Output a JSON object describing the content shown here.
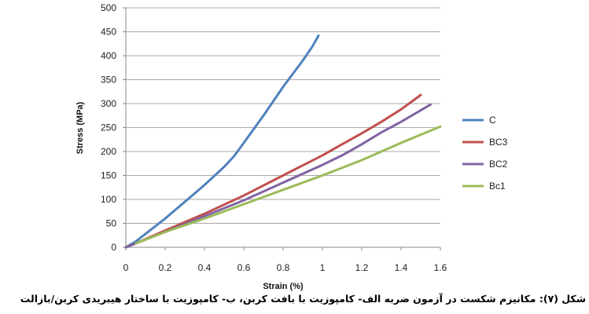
{
  "caption": "شکل (۷): مکانیزم شکست در آزمون ضربه الف- کامپوزیت با بافت کربن، ب- کامپوزیت با ساختار هیبریدی کربن/بازالت",
  "chart_data": {
    "type": "line",
    "xlabel": "Strain (%)",
    "ylabel": "Stress (MPa)",
    "xlim": [
      0,
      1.6
    ],
    "ylim": [
      0,
      500
    ],
    "xticks": [
      "0",
      "0.2",
      "0.4",
      "0.6",
      "0.8",
      "1",
      "1.2",
      "1.4",
      "1.6"
    ],
    "yticks": [
      "0",
      "50",
      "100",
      "150",
      "200",
      "250",
      "300",
      "350",
      "400",
      "450",
      "500"
    ],
    "grid": "horizontal",
    "legend_position": "right",
    "series": [
      {
        "name": "C",
        "color": "#4F81BD",
        "points": [
          [
            0.0,
            0
          ],
          [
            0.05,
            12
          ],
          [
            0.1,
            28
          ],
          [
            0.2,
            60
          ],
          [
            0.3,
            95
          ],
          [
            0.4,
            130
          ],
          [
            0.5,
            168
          ],
          [
            0.55,
            190
          ],
          [
            0.6,
            218
          ],
          [
            0.7,
            275
          ],
          [
            0.8,
            335
          ],
          [
            0.9,
            390
          ],
          [
            0.95,
            420
          ],
          [
            0.98,
            442
          ]
        ]
      },
      {
        "name": "BC3",
        "color": "#C0504D",
        "points": [
          [
            0.0,
            0
          ],
          [
            0.05,
            8
          ],
          [
            0.2,
            35
          ],
          [
            0.4,
            70
          ],
          [
            0.6,
            108
          ],
          [
            0.8,
            150
          ],
          [
            1.0,
            192
          ],
          [
            1.1,
            215
          ],
          [
            1.2,
            238
          ],
          [
            1.3,
            262
          ],
          [
            1.4,
            288
          ],
          [
            1.5,
            318
          ]
        ]
      },
      {
        "name": "BC2",
        "color": "#8064A2",
        "points": [
          [
            0.0,
            0
          ],
          [
            0.05,
            8
          ],
          [
            0.2,
            32
          ],
          [
            0.4,
            65
          ],
          [
            0.6,
            98
          ],
          [
            0.8,
            135
          ],
          [
            1.0,
            172
          ],
          [
            1.1,
            192
          ],
          [
            1.2,
            215
          ],
          [
            1.3,
            240
          ],
          [
            1.4,
            262
          ],
          [
            1.55,
            298
          ]
        ]
      },
      {
        "name": "Bc1",
        "color": "#9BBB59",
        "points": [
          [
            0.05,
            8
          ],
          [
            0.2,
            32
          ],
          [
            0.4,
            60
          ],
          [
            0.6,
            90
          ],
          [
            0.8,
            120
          ],
          [
            1.0,
            150
          ],
          [
            1.2,
            182
          ],
          [
            1.4,
            218
          ],
          [
            1.6,
            252
          ]
        ]
      }
    ]
  }
}
